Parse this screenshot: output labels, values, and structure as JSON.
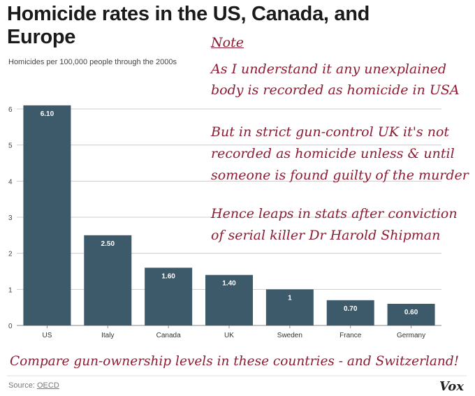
{
  "title": "Homicide rates in the US, Canada, and Europe",
  "subtitle": "Homicides per 100,000 people through the 2000s",
  "annotations": {
    "note_heading": "Note",
    "note_lines_1": [
      "As I understand it any unexplained",
      "body is recorded as homicide in USA"
    ],
    "note_lines_2": [
      "But in strict gun-control UK it's not",
      "recorded as homicide unless & until",
      "someone is found guilty of the murder"
    ],
    "note_lines_3": [
      "Hence leaps in stats after conviction",
      "of serial killer Dr Harold Shipman"
    ],
    "footer": "Compare gun-ownership levels in these countries - and Switzerland!"
  },
  "source": {
    "label": "Source:",
    "link_text": "OECD"
  },
  "logo": "Vox",
  "colors": {
    "bar": "#3d5a6b",
    "grid": "#cccccc",
    "annotation": "#8b1c33"
  },
  "chart_data": {
    "type": "bar",
    "categories": [
      "US",
      "Italy",
      "Canada",
      "UK",
      "Sweden",
      "France",
      "Germany"
    ],
    "values": [
      6.1,
      2.5,
      1.6,
      1.4,
      1,
      0.7,
      0.6
    ],
    "value_labels": [
      "6.10",
      "2.50",
      "1.60",
      "1.40",
      "1",
      "0.70",
      "0.60"
    ],
    "ylim": [
      0,
      6
    ],
    "yticks": [
      0,
      1,
      2,
      3,
      4,
      5,
      6
    ],
    "grid": true
  }
}
